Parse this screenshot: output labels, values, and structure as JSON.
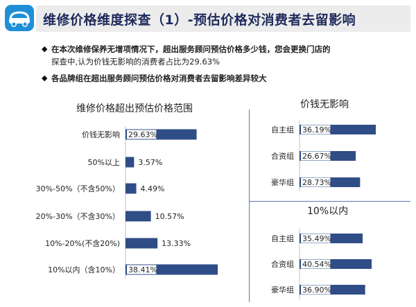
{
  "header": {
    "title": "维修价格维度探查（1）-预估价格对消费者去留影响"
  },
  "bullets": [
    {
      "line1": "在本次维修保养无增项情况下，超出服务顾问预估价格多少钱，您会更换门店的",
      "line2": "探查中,认为价钱无影响的消费者占比为29.63%"
    },
    {
      "line1": "各品牌组在超出服务顾问预估价格对消费者去留影响差异较大"
    }
  ],
  "colors": {
    "bar": "#2f4d86",
    "divider": "#5b78b8",
    "title": "#1f2a5c"
  },
  "chart_data": [
    {
      "type": "bar",
      "orientation": "horizontal",
      "title": "维修价格超出预估价格范围",
      "categories": [
        "价钱无影响",
        "50%以上",
        "30%-50%（不含50%）",
        "20%-30%（不含30%）",
        "10%-20%(不含20%)",
        "10%以内（含10%）"
      ],
      "values": [
        29.63,
        3.57,
        4.49,
        10.57,
        13.33,
        38.41
      ],
      "labels": [
        "29.63%",
        "3.57%",
        "4.49%",
        "10.57%",
        "13.33%",
        "38.41%"
      ],
      "xlim": [
        0,
        40
      ]
    },
    {
      "type": "bar",
      "orientation": "horizontal",
      "title": "价钱无影响",
      "categories": [
        "自主组",
        "合资组",
        "豪华组"
      ],
      "values": [
        36.19,
        26.67,
        28.73
      ],
      "labels": [
        "36.19%",
        "26.67%",
        "28.73%"
      ],
      "xlim": [
        0,
        40
      ]
    },
    {
      "type": "bar",
      "orientation": "horizontal",
      "title": "10%以内",
      "categories": [
        "自主组",
        "合资组",
        "豪华组"
      ],
      "values": [
        35.49,
        40.54,
        36.9
      ],
      "labels": [
        "35.49%",
        "40.54%",
        "36.90%"
      ],
      "xlim": [
        0,
        40
      ]
    }
  ]
}
